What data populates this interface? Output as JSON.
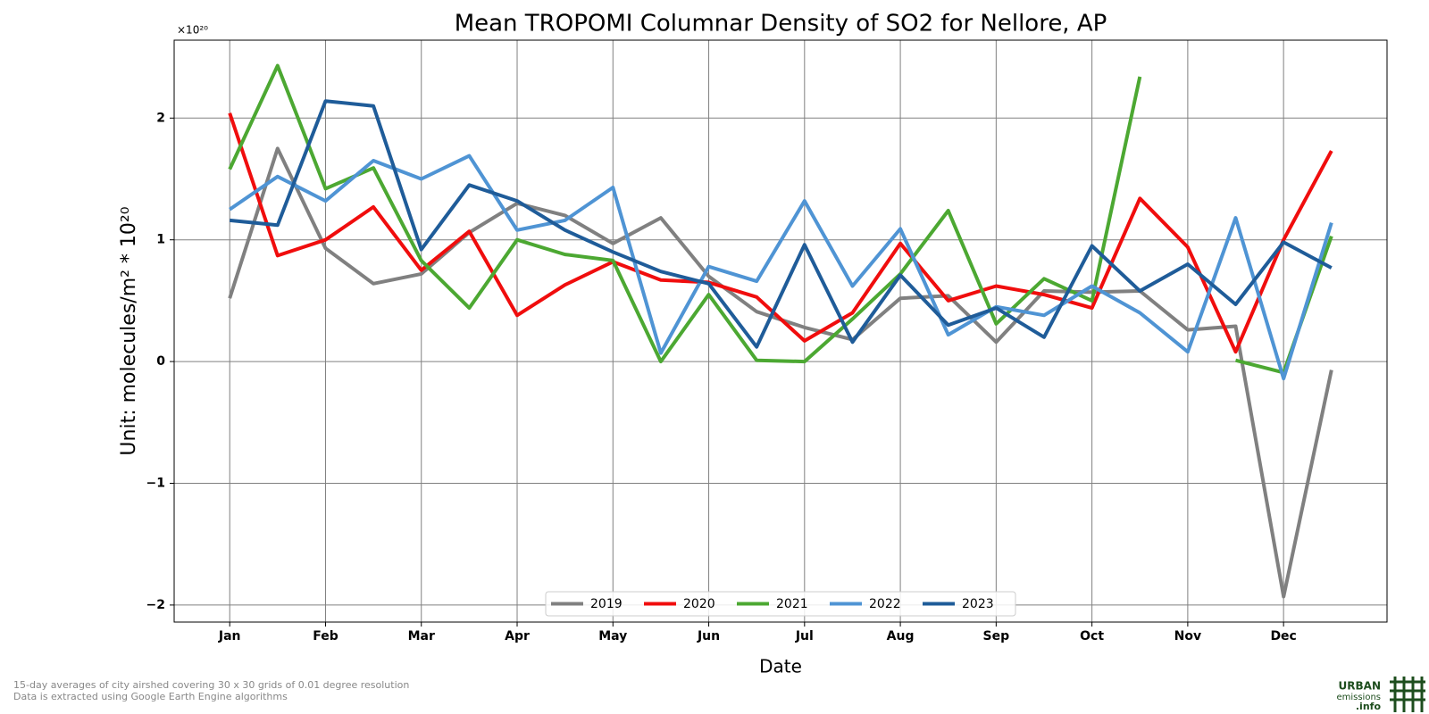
{
  "chart_data": {
    "type": "line",
    "title": "Mean TROPOMI Columnar Density of SO2 for Nellore, AP",
    "x_label": "Date",
    "y_label": "Unit: molecules/m² * 10²⁰",
    "offset_text": "×10²⁰",
    "categories": [
      "Jan",
      null,
      "Feb",
      null,
      "Mar",
      null,
      "Apr",
      null,
      "May",
      null,
      "Jun",
      null,
      "Jul",
      null,
      "Aug",
      null,
      "Sep",
      null,
      "Oct",
      null,
      "Nov",
      null,
      "Dec",
      null
    ],
    "series": [
      {
        "name": "2019",
        "color": "#808080",
        "values": [
          0.52,
          1.75,
          0.93,
          0.64,
          0.72,
          1.06,
          1.3,
          1.2,
          0.97,
          1.18,
          0.7,
          0.41,
          0.28,
          0.18,
          0.52,
          0.54,
          0.16,
          0.58,
          0.57,
          0.58,
          0.26,
          0.29,
          -1.93,
          -0.07
        ]
      },
      {
        "name": "2020",
        "color": "#f00d0d",
        "values": [
          2.04,
          0.87,
          1.0,
          1.27,
          0.75,
          1.07,
          0.38,
          0.63,
          0.82,
          0.67,
          0.65,
          0.53,
          0.17,
          0.4,
          0.97,
          0.5,
          0.62,
          0.55,
          0.44,
          1.34,
          0.94,
          0.08,
          1.0,
          1.73
        ]
      },
      {
        "name": "2021",
        "color": "#4ca832",
        "values": [
          1.58,
          2.43,
          1.42,
          1.59,
          0.83,
          0.44,
          1.0,
          0.88,
          0.83,
          0.0,
          0.55,
          0.01,
          0.0,
          0.35,
          0.72,
          1.24,
          0.31,
          0.68,
          0.5,
          2.34,
          null,
          0.01,
          -0.09,
          1.03
        ]
      },
      {
        "name": "2022",
        "color": "#4f94d4",
        "values": [
          1.25,
          1.52,
          1.32,
          1.65,
          1.5,
          1.69,
          1.08,
          1.16,
          1.43,
          0.07,
          0.78,
          0.66,
          1.32,
          0.62,
          1.09,
          0.22,
          0.45,
          0.38,
          0.62,
          0.4,
          0.08,
          1.18,
          -0.14,
          1.14
        ]
      },
      {
        "name": "2023",
        "color": "#1f5c99",
        "values": [
          1.16,
          1.12,
          2.14,
          2.1,
          0.92,
          1.45,
          1.32,
          1.08,
          0.9,
          0.74,
          0.64,
          0.12,
          0.96,
          0.16,
          0.71,
          0.3,
          0.44,
          0.2,
          0.95,
          0.58,
          0.8,
          0.47,
          0.98,
          0.77
        ]
      }
    ],
    "ylim": [
      -2.14,
      2.64
    ],
    "yticks": [
      {
        "value": -2,
        "label": "−2"
      },
      {
        "value": -1,
        "label": "−1"
      },
      0,
      1,
      2
    ],
    "grid": true,
    "legend": "lower center",
    "footnotes": [
      "15-day averages of city airshed covering 30 x 30 grids of 0.01 degree resolution",
      "Data is extracted using Google Earth Engine algorithms"
    ],
    "logo": [
      "URBAN",
      "emissions",
      ".info"
    ]
  }
}
